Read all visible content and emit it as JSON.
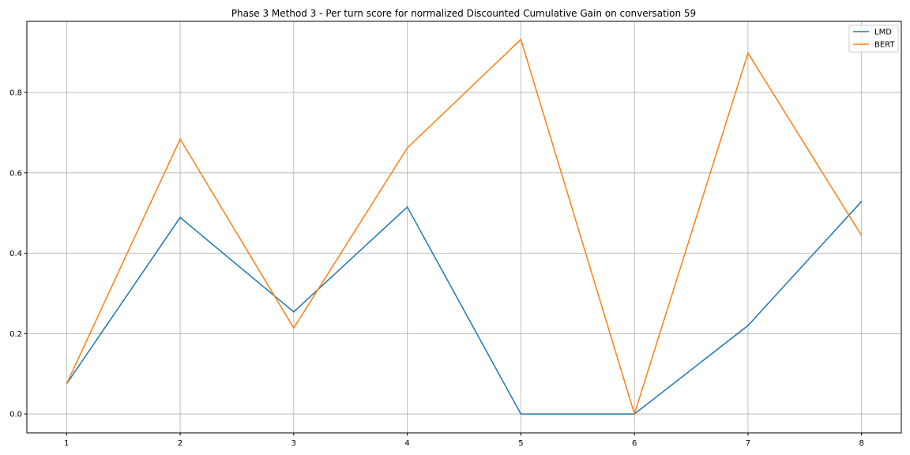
{
  "chart_data": {
    "type": "line",
    "title": "Phase 3 Method 3 - Per turn score for normalized Discounted Cumulative Gain on conversation 59",
    "xlabel": "",
    "ylabel": "",
    "x": [
      1,
      2,
      3,
      4,
      5,
      6,
      7,
      8
    ],
    "xticks": [
      1,
      2,
      3,
      4,
      5,
      6,
      7,
      8
    ],
    "yticks": [
      0.0,
      0.2,
      0.4,
      0.6,
      0.8
    ],
    "ytick_labels": [
      "0.0",
      "0.2",
      "0.4",
      "0.6",
      "0.8"
    ],
    "xlim": [
      0.65,
      8.35
    ],
    "ylim": [
      -0.047,
      0.977
    ],
    "grid": true,
    "legend_position": "top-right",
    "series": [
      {
        "name": "LMD",
        "color": "#1f77b4",
        "values": [
          0.075,
          0.489,
          0.254,
          0.515,
          0.0,
          0.0,
          0.22,
          0.529
        ]
      },
      {
        "name": "BERT",
        "color": "#ff7f0e",
        "values": [
          0.075,
          0.684,
          0.214,
          0.662,
          0.932,
          0.0,
          0.898,
          0.444
        ]
      }
    ]
  }
}
